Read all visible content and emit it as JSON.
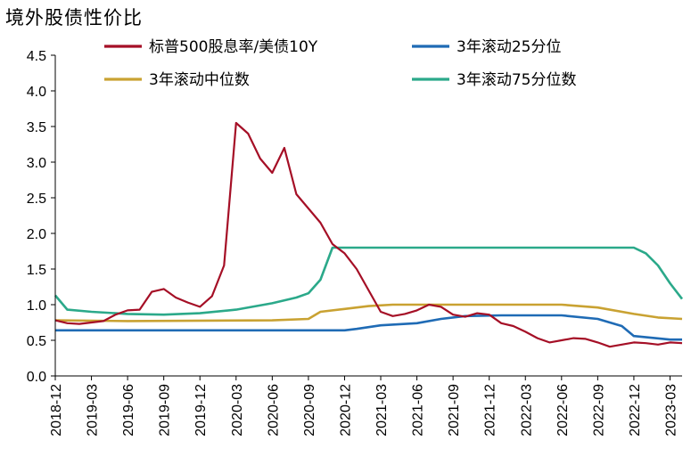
{
  "title": "境外股债性价比",
  "colors": {
    "sp500": "#A50F26",
    "q25": "#1F6BB5",
    "median": "#C9A232",
    "q75": "#2BA98A"
  },
  "chart_data": {
    "type": "line",
    "title": "境外股债性价比",
    "xlabel": "",
    "ylabel": "",
    "ylim": [
      0.0,
      4.5
    ],
    "yticks": [
      "0.0",
      "0.5",
      "1.0",
      "1.5",
      "2.0",
      "2.5",
      "3.0",
      "3.5",
      "4.0",
      "4.5"
    ],
    "x_range": [
      "2018-12",
      "2023-04"
    ],
    "xticks": [
      "2018-12",
      "2019-03",
      "2019-06",
      "2019-09",
      "2019-12",
      "2020-03",
      "2020-06",
      "2020-09",
      "2020-12",
      "2021-03",
      "2021-06",
      "2021-09",
      "2021-12",
      "2022-03",
      "2022-06",
      "2022-09",
      "2022-12",
      "2023-03"
    ],
    "grid": false,
    "legend_position": "top",
    "series": [
      {
        "name": "标普500股息率/美债10Y",
        "color_key": "sp500",
        "points": [
          [
            "2018-12",
            0.78
          ],
          [
            "2019-01",
            0.74
          ],
          [
            "2019-02",
            0.73
          ],
          [
            "2019-03",
            0.75
          ],
          [
            "2019-04",
            0.77
          ],
          [
            "2019-05",
            0.86
          ],
          [
            "2019-06",
            0.92
          ],
          [
            "2019-07",
            0.93
          ],
          [
            "2019-08",
            1.18
          ],
          [
            "2019-09",
            1.22
          ],
          [
            "2019-10",
            1.1
          ],
          [
            "2019-11",
            1.03
          ],
          [
            "2019-12",
            0.97
          ],
          [
            "2020-01",
            1.12
          ],
          [
            "2020-02",
            1.55
          ],
          [
            "2020-03",
            3.55
          ],
          [
            "2020-04",
            3.4
          ],
          [
            "2020-05",
            3.05
          ],
          [
            "2020-06",
            2.85
          ],
          [
            "2020-07",
            3.2
          ],
          [
            "2020-08",
            2.55
          ],
          [
            "2020-09",
            2.35
          ],
          [
            "2020-10",
            2.15
          ],
          [
            "2020-11",
            1.85
          ],
          [
            "2020-12",
            1.72
          ],
          [
            "2021-01",
            1.5
          ],
          [
            "2021-02",
            1.2
          ],
          [
            "2021-03",
            0.9
          ],
          [
            "2021-04",
            0.84
          ],
          [
            "2021-05",
            0.87
          ],
          [
            "2021-06",
            0.92
          ],
          [
            "2021-07",
            1.0
          ],
          [
            "2021-08",
            0.97
          ],
          [
            "2021-09",
            0.86
          ],
          [
            "2021-10",
            0.83
          ],
          [
            "2021-11",
            0.88
          ],
          [
            "2021-12",
            0.86
          ],
          [
            "2022-01",
            0.74
          ],
          [
            "2022-02",
            0.7
          ],
          [
            "2022-03",
            0.62
          ],
          [
            "2022-04",
            0.53
          ],
          [
            "2022-05",
            0.47
          ],
          [
            "2022-06",
            0.5
          ],
          [
            "2022-07",
            0.53
          ],
          [
            "2022-08",
            0.52
          ],
          [
            "2022-09",
            0.47
          ],
          [
            "2022-10",
            0.41
          ],
          [
            "2022-11",
            0.44
          ],
          [
            "2022-12",
            0.47
          ],
          [
            "2023-01",
            0.46
          ],
          [
            "2023-02",
            0.44
          ],
          [
            "2023-03",
            0.47
          ],
          [
            "2023-04",
            0.46
          ]
        ]
      },
      {
        "name": "3年滚动25分位",
        "color_key": "q25",
        "points": [
          [
            "2018-12",
            0.64
          ],
          [
            "2019-06",
            0.64
          ],
          [
            "2020-06",
            0.64
          ],
          [
            "2020-12",
            0.64
          ],
          [
            "2021-01",
            0.66
          ],
          [
            "2021-03",
            0.71
          ],
          [
            "2021-06",
            0.74
          ],
          [
            "2021-08",
            0.8
          ],
          [
            "2021-10",
            0.84
          ],
          [
            "2022-01",
            0.85
          ],
          [
            "2022-06",
            0.85
          ],
          [
            "2022-09",
            0.8
          ],
          [
            "2022-11",
            0.7
          ],
          [
            "2022-12",
            0.56
          ],
          [
            "2023-03",
            0.51
          ],
          [
            "2023-04",
            0.51
          ]
        ]
      },
      {
        "name": "3年滚动中位数",
        "color_key": "median",
        "points": [
          [
            "2018-12",
            0.78
          ],
          [
            "2019-06",
            0.77
          ],
          [
            "2020-06",
            0.78
          ],
          [
            "2020-09",
            0.8
          ],
          [
            "2020-10",
            0.9
          ],
          [
            "2020-12",
            0.94
          ],
          [
            "2021-02",
            0.98
          ],
          [
            "2021-04",
            1.0
          ],
          [
            "2022-06",
            1.0
          ],
          [
            "2022-09",
            0.96
          ],
          [
            "2022-12",
            0.87
          ],
          [
            "2023-02",
            0.82
          ],
          [
            "2023-04",
            0.8
          ]
        ]
      },
      {
        "name": "3年滚动75分位数",
        "color_key": "q75",
        "points": [
          [
            "2018-12",
            1.13
          ],
          [
            "2019-01",
            0.93
          ],
          [
            "2019-03",
            0.9
          ],
          [
            "2019-06",
            0.87
          ],
          [
            "2019-09",
            0.86
          ],
          [
            "2019-12",
            0.88
          ],
          [
            "2020-03",
            0.93
          ],
          [
            "2020-06",
            1.02
          ],
          [
            "2020-08",
            1.1
          ],
          [
            "2020-09",
            1.16
          ],
          [
            "2020-10",
            1.35
          ],
          [
            "2020-11",
            1.8
          ],
          [
            "2021-06",
            1.8
          ],
          [
            "2022-06",
            1.8
          ],
          [
            "2022-12",
            1.8
          ],
          [
            "2023-01",
            1.72
          ],
          [
            "2023-02",
            1.55
          ],
          [
            "2023-03",
            1.3
          ],
          [
            "2023-04",
            1.08
          ]
        ]
      }
    ]
  }
}
